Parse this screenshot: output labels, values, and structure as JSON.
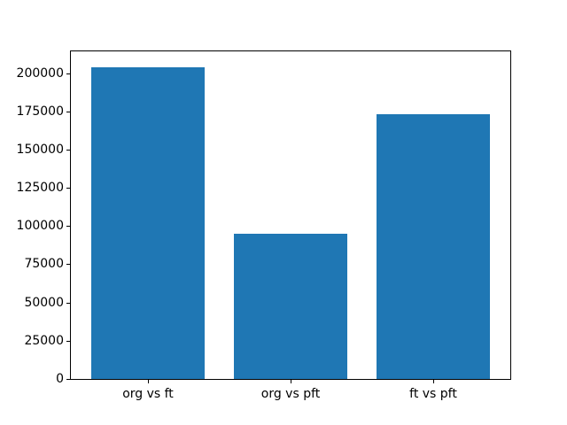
{
  "chart_data": {
    "type": "bar",
    "title": "",
    "xlabel": "",
    "ylabel": "",
    "categories": [
      "org vs ft",
      "org vs pft",
      "ft vs pft"
    ],
    "values": [
      204000,
      95000,
      173000
    ],
    "yticks": [
      0,
      25000,
      50000,
      75000,
      100000,
      125000,
      150000,
      175000,
      200000
    ],
    "ytick_labels": [
      "0",
      "25000",
      "50000",
      "75000",
      "100000",
      "125000",
      "150000",
      "175000",
      "200000"
    ],
    "xlim": [
      -0.54,
      2.54
    ],
    "ylim": [
      0,
      214200
    ],
    "bar_width": 0.8,
    "bar_color": "#1f77b4",
    "grid": false,
    "legend": false
  }
}
